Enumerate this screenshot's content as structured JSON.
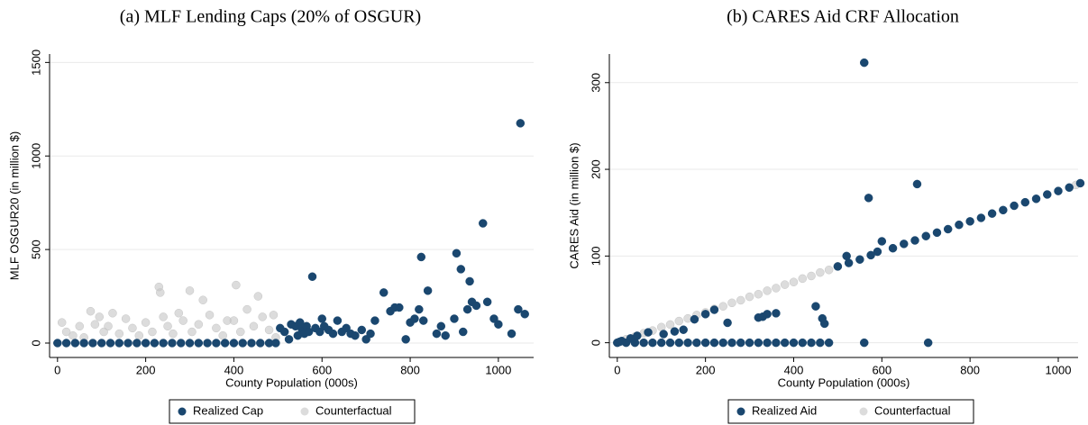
{
  "chart_data": [
    {
      "type": "scatter",
      "title": "(a)  MLF Lending Caps (20% of OSGUR)",
      "x_label": "County Population (000s)",
      "y_label": "MLF OSGUR20 (in million $)",
      "xlim": [
        -18,
        1080
      ],
      "ylim": [
        -77,
        1545
      ],
      "xticks": [
        0,
        200,
        400,
        600,
        800,
        1000
      ],
      "yticks": [
        0,
        500,
        1000,
        1500
      ],
      "grid": true,
      "legend": "bottom",
      "series": [
        {
          "name": "Counterfactual",
          "color": "#c4c4c4",
          "x": [
            10,
            20,
            35,
            50,
            60,
            75,
            85,
            95,
            105,
            115,
            125,
            140,
            155,
            170,
            185,
            200,
            215,
            230,
            233,
            240,
            250,
            262,
            275,
            285,
            300,
            305,
            320,
            330,
            345,
            360,
            375,
            385,
            400,
            405,
            415,
            430,
            445,
            455,
            465,
            480,
            490,
            495
          ],
          "values": [
            110,
            60,
            40,
            90,
            30,
            170,
            100,
            140,
            60,
            90,
            160,
            50,
            130,
            80,
            40,
            110,
            60,
            300,
            270,
            140,
            90,
            50,
            160,
            120,
            280,
            60,
            100,
            230,
            150,
            80,
            40,
            120,
            120,
            310,
            60,
            180,
            90,
            250,
            140,
            70,
            150,
            30
          ]
        },
        {
          "name": "Realized Cap",
          "color": "#1a476f",
          "x": [
            0,
            20,
            40,
            60,
            80,
            100,
            120,
            140,
            160,
            180,
            200,
            220,
            240,
            260,
            280,
            300,
            320,
            340,
            360,
            380,
            400,
            420,
            440,
            460,
            480,
            495,
            505,
            515,
            525,
            530,
            540,
            545,
            550,
            555,
            560,
            565,
            570,
            578,
            585,
            595,
            600,
            605,
            615,
            625,
            635,
            645,
            655,
            665,
            675,
            690,
            700,
            710,
            720,
            740,
            755,
            765,
            775,
            790,
            800,
            810,
            820,
            825,
            830,
            840,
            860,
            870,
            880,
            900,
            905,
            915,
            920,
            930,
            935,
            940,
            950,
            965,
            975,
            990,
            1000,
            1030,
            1045,
            1050,
            1060
          ],
          "values": [
            0,
            0,
            0,
            0,
            0,
            0,
            0,
            0,
            0,
            0,
            0,
            0,
            0,
            0,
            0,
            0,
            0,
            0,
            0,
            0,
            0,
            0,
            0,
            0,
            0,
            0,
            80,
            60,
            20,
            100,
            90,
            40,
            110,
            70,
            50,
            90,
            60,
            355,
            80,
            60,
            130,
            90,
            70,
            50,
            120,
            60,
            80,
            50,
            40,
            70,
            20,
            50,
            120,
            270,
            170,
            190,
            190,
            20,
            110,
            130,
            180,
            460,
            120,
            280,
            50,
            90,
            40,
            130,
            480,
            395,
            60,
            180,
            330,
            220,
            200,
            640,
            220,
            130,
            100,
            50,
            180,
            1175,
            155
          ]
        }
      ]
    },
    {
      "type": "scatter",
      "title": "(b)  CARES Aid CRF Allocation",
      "x_label": "County Population (000s)",
      "y_label": "CARES Aid (in million $)",
      "xlim": [
        -18,
        1045
      ],
      "ylim": [
        -17,
        333
      ],
      "xticks": [
        0,
        200,
        400,
        600,
        800,
        1000
      ],
      "yticks": [
        0,
        100,
        200,
        300
      ],
      "grid": true,
      "legend": "bottom",
      "series": [
        {
          "name": "Counterfactual",
          "color": "#c4c4c4",
          "x": [
            0,
            20,
            40,
            60,
            80,
            100,
            120,
            140,
            160,
            180,
            200,
            220,
            240,
            260,
            280,
            300,
            320,
            340,
            360,
            380,
            400,
            420,
            440,
            460,
            480,
            500,
            1040
          ],
          "values": [
            0,
            4,
            7,
            11,
            14,
            18,
            21,
            25,
            28,
            32,
            35,
            39,
            42,
            46,
            49,
            53,
            56,
            60,
            63,
            67,
            70,
            74,
            77,
            81,
            84,
            88,
            182
          ]
        },
        {
          "name": "Realized Aid",
          "color": "#1a476f",
          "x": [
            0,
            20,
            40,
            60,
            80,
            100,
            120,
            140,
            160,
            180,
            200,
            220,
            240,
            260,
            280,
            300,
            320,
            340,
            360,
            380,
            400,
            420,
            440,
            460,
            480,
            5,
            10,
            30,
            45,
            70,
            105,
            130,
            150,
            175,
            200,
            220,
            250,
            320,
            330,
            340,
            360,
            450,
            465,
            470,
            560,
            705,
            560,
            570,
            680,
            600,
            590,
            520,
            500,
            525,
            550,
            575,
            625,
            650,
            675,
            700,
            725,
            750,
            775,
            800,
            825,
            850,
            875,
            900,
            925,
            950,
            975,
            1000,
            1025,
            1050
          ],
          "values": [
            0,
            0,
            0,
            0,
            0,
            0,
            0,
            0,
            0,
            0,
            0,
            0,
            0,
            0,
            0,
            0,
            0,
            0,
            0,
            0,
            0,
            0,
            0,
            0,
            0,
            1,
            2,
            5,
            8,
            12,
            10,
            13,
            15,
            27,
            33,
            38,
            23,
            29,
            30,
            33,
            34,
            42,
            28,
            22,
            0,
            0,
            323,
            167,
            183,
            117,
            105,
            100,
            88,
            92,
            96,
            101,
            109,
            114,
            118,
            123,
            127,
            131,
            136,
            140,
            144,
            149,
            153,
            158,
            162,
            166,
            171,
            175,
            179,
            184
          ]
        }
      ]
    }
  ]
}
